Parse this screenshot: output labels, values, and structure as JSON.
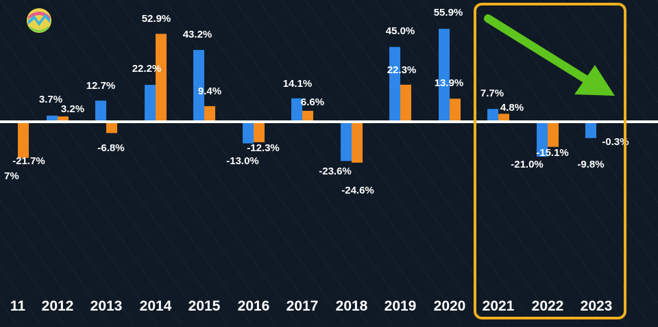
{
  "chart_data": {
    "type": "bar",
    "categories": [
      "11",
      "2012",
      "2013",
      "2014",
      "2015",
      "2016",
      "2017",
      "2018",
      "2019",
      "2020",
      "2021",
      "2022",
      "2023"
    ],
    "series": [
      {
        "values": [
          null,
          3.7,
          12.7,
          22.2,
          43.2,
          -13.0,
          14.1,
          -23.6,
          45.0,
          55.9,
          7.7,
          -21.0,
          -9.8
        ],
        "labels": [
          "",
          "3.7%",
          "12.7%",
          "22.2%",
          "43.2%",
          "-13.0%",
          "14.1%",
          "-23.6%",
          "45.0%",
          "55.9%",
          "7.7%",
          "-21.0%",
          "-9.8%"
        ]
      },
      {
        "values": [
          -21.7,
          3.2,
          -6.8,
          52.9,
          9.4,
          -12.3,
          6.6,
          -24.6,
          22.3,
          13.9,
          4.8,
          -15.1,
          -0.3
        ],
        "labels": [
          "-21.7%",
          "3.2%",
          "-6.8%",
          "52.9%",
          "9.4%",
          "-12.3%",
          "6.6%",
          "-24.6%",
          "22.3%",
          "13.9%",
          "4.8%",
          "-15.1%",
          "-0.3%"
        ]
      }
    ],
    "extra_labels": [
      "7%"
    ],
    "highlight": {
      "categories": [
        "2021",
        "2022",
        "2023"
      ],
      "color": "#f2b01e"
    },
    "trend_arrow": {
      "direction": "down-right",
      "color": "#5ec41e"
    },
    "zero_line": true,
    "grid": false,
    "colors": {
      "series": [
        "#2d86e8",
        "#f28a1e"
      ],
      "background": "#0f1a26",
      "text": "#ffffff"
    }
  }
}
